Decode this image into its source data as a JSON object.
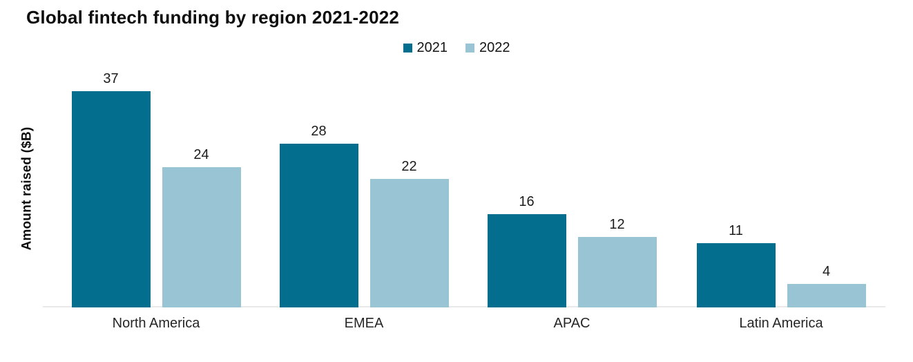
{
  "title": "Global fintech funding by region 2021-2022",
  "y_axis_label": "Amount raised ($B)",
  "colors": {
    "series_2021": "#046e8e",
    "series_2022": "#98c4d3",
    "axis_line": "#e9e9e9",
    "text": "#0d0d0d"
  },
  "legend": {
    "items": [
      {
        "label": "2021",
        "color": "#046e8e"
      },
      {
        "label": "2022",
        "color": "#98c4d3"
      }
    ]
  },
  "chart_data": {
    "type": "bar",
    "title": "Global fintech funding by region 2021-2022",
    "categories": [
      "North America",
      "EMEA",
      "APAC",
      "Latin America"
    ],
    "series": [
      {
        "name": "2021",
        "color": "#046e8e",
        "values": [
          37,
          28,
          16,
          11
        ]
      },
      {
        "name": "2022",
        "color": "#98c4d3",
        "values": [
          24,
          22,
          12,
          4
        ]
      }
    ],
    "xlabel": "",
    "ylabel": "Amount raised ($B)",
    "ylim": [
      0,
      40
    ],
    "grid": false,
    "legend_position": "top-center",
    "bar_value_labels": true
  }
}
